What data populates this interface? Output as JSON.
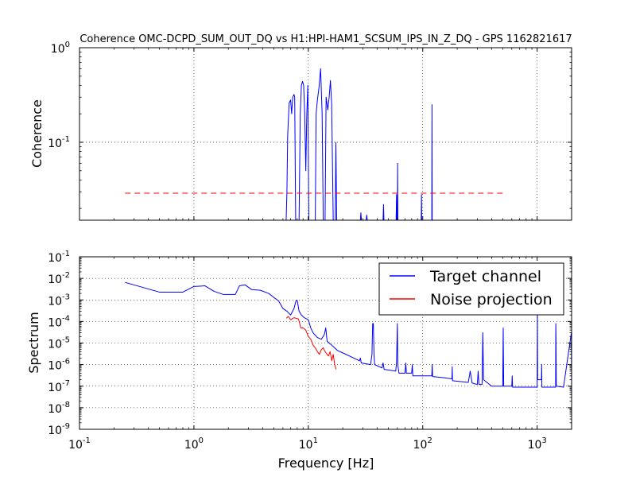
{
  "chart_data": [
    {
      "type": "line",
      "title": "Coherence OMC-DCPD_SUM_OUT_DQ vs H1:HPI-HAM1_SCSUM_IPS_IN_Z_DQ - GPS 1162821617",
      "xlabel": "",
      "ylabel": "Coherence",
      "xscale": "log",
      "yscale": "log",
      "xlim": [
        0.1,
        2000
      ],
      "ylim": [
        0.015,
        1
      ],
      "yticks": [
        {
          "base": "10",
          "exp": "0"
        },
        {
          "base": "10",
          "exp": "-1"
        }
      ],
      "grid": true,
      "series": [
        {
          "name": "",
          "color": "#0000ff",
          "style": "solid",
          "points": [
            [
              6.4,
              0.015
            ],
            [
              6.5,
              0.03
            ],
            [
              6.6,
              0.12
            ],
            [
              6.8,
              0.26
            ],
            [
              7.0,
              0.28
            ],
            [
              7.15,
              0.2
            ],
            [
              7.3,
              0.3
            ],
            [
              7.5,
              0.32
            ],
            [
              7.6,
              0.3
            ],
            [
              7.75,
              0.015
            ],
            [
              8.3,
              0.015
            ],
            [
              8.5,
              0.2
            ],
            [
              8.7,
              0.4
            ],
            [
              8.9,
              0.44
            ],
            [
              9.1,
              0.4
            ],
            [
              9.3,
              0.2
            ],
            [
              9.5,
              0.05
            ],
            [
              9.7,
              0.2
            ],
            [
              9.9,
              0.4
            ],
            [
              10.1,
              0.015
            ],
            [
              11.5,
              0.015
            ],
            [
              11.7,
              0.2
            ],
            [
              12.0,
              0.28
            ],
            [
              12.4,
              0.38
            ],
            [
              12.8,
              0.6
            ],
            [
              13.2,
              0.2
            ],
            [
              13.5,
              0.015
            ],
            [
              14.0,
              0.015
            ],
            [
              14.3,
              0.3
            ],
            [
              14.8,
              0.22
            ],
            [
              15.2,
              0.3
            ],
            [
              15.6,
              0.45
            ],
            [
              16.0,
              0.25
            ],
            [
              16.5,
              0.015
            ],
            [
              17.2,
              0.015
            ],
            [
              17.4,
              0.1
            ],
            [
              17.7,
              0.015
            ],
            [
              28.5,
              0.015
            ],
            [
              28.8,
              0.018
            ],
            [
              29.1,
              0.015
            ],
            [
              32.0,
              0.015
            ],
            [
              32.4,
              0.017
            ],
            [
              32.8,
              0.015
            ],
            [
              45.0,
              0.015
            ],
            [
              45.4,
              0.022
            ],
            [
              45.8,
              0.015
            ],
            [
              58.5,
              0.015
            ],
            [
              59.0,
              0.028
            ],
            [
              59.5,
              0.015
            ],
            [
              60.0,
              0.015
            ],
            [
              60.3,
              0.06
            ],
            [
              60.6,
              0.015
            ],
            [
              97.0,
              0.015
            ],
            [
              97.5,
              0.028
            ],
            [
              98.0,
              0.015
            ],
            [
              120.0,
              0.015
            ],
            [
              120.5,
              0.25
            ],
            [
              121.0,
              0.015
            ]
          ]
        },
        {
          "name": "",
          "color": "#ff0000",
          "style": "dashed",
          "points": [
            [
              0.25,
              0.029
            ],
            [
              512,
              0.029
            ]
          ]
        }
      ]
    },
    {
      "type": "line",
      "title": "",
      "xlabel": "Frequency [Hz]",
      "ylabel": "Spectrum",
      "xscale": "log",
      "yscale": "log",
      "xlim": [
        0.1,
        2000
      ],
      "ylim": [
        1e-09,
        0.1
      ],
      "xticks": [
        {
          "base": "10",
          "exp": "-1"
        },
        {
          "base": "10",
          "exp": "0"
        },
        {
          "base": "10",
          "exp": "1"
        },
        {
          "base": "10",
          "exp": "2"
        },
        {
          "base": "10",
          "exp": "3"
        }
      ],
      "yticks": [
        {
          "base": "10",
          "exp": "-1"
        },
        {
          "base": "10",
          "exp": "-2"
        },
        {
          "base": "10",
          "exp": "-3"
        },
        {
          "base": "10",
          "exp": "-4"
        },
        {
          "base": "10",
          "exp": "-5"
        },
        {
          "base": "10",
          "exp": "-6"
        },
        {
          "base": "10",
          "exp": "-7"
        },
        {
          "base": "10",
          "exp": "-8"
        },
        {
          "base": "10",
          "exp": "-9"
        }
      ],
      "grid": true,
      "legend_position": "top-right",
      "series": [
        {
          "name": "Target channel",
          "color": "#0000ff",
          "style": "solid",
          "points": [
            [
              0.25,
              0.0065
            ],
            [
              0.5,
              0.0023
            ],
            [
              0.8,
              0.0023
            ],
            [
              1.0,
              0.0042
            ],
            [
              1.25,
              0.0045
            ],
            [
              1.5,
              0.0025
            ],
            [
              1.8,
              0.0018
            ],
            [
              2.0,
              0.0018
            ],
            [
              2.3,
              0.0018
            ],
            [
              2.5,
              0.0045
            ],
            [
              2.8,
              0.005
            ],
            [
              3.2,
              0.003
            ],
            [
              3.8,
              0.0028
            ],
            [
              4.5,
              0.002
            ],
            [
              5.0,
              0.0013
            ],
            [
              5.5,
              0.0009
            ],
            [
              6.0,
              0.0004
            ],
            [
              6.5,
              0.0003
            ],
            [
              7.0,
              0.0002
            ],
            [
              7.5,
              0.0004
            ],
            [
              7.8,
              0.0009
            ],
            [
              8.0,
              0.00095
            ],
            [
              8.3,
              0.0003
            ],
            [
              8.7,
              0.0002
            ],
            [
              9.2,
              0.00015
            ],
            [
              10.0,
              0.00012
            ],
            [
              10.5,
              5e-05
            ],
            [
              11.0,
              3e-05
            ],
            [
              12.0,
              1.8e-05
            ],
            [
              13.0,
              1.5e-05
            ],
            [
              13.8,
              2.5e-05
            ],
            [
              14.2,
              5e-05
            ],
            [
              14.6,
              1.2e-05
            ],
            [
              16.0,
              8e-06
            ],
            [
              18.0,
              4.5e-06
            ],
            [
              20.0,
              3.5e-06
            ],
            [
              25.0,
              2e-06
            ],
            [
              28.0,
              1.5e-06
            ],
            [
              28.5,
              2e-06
            ],
            [
              29.0,
              1.2e-06
            ],
            [
              35.0,
              1e-06
            ],
            [
              36.0,
              3e-06
            ],
            [
              36.5,
              8e-05
            ],
            [
              37.0,
              8e-05
            ],
            [
              37.5,
              3e-06
            ],
            [
              38.0,
              1e-06
            ],
            [
              44.0,
              7e-07
            ],
            [
              45.0,
              1.2e-06
            ],
            [
              46.0,
              6e-07
            ],
            [
              58.0,
              5e-07
            ],
            [
              59.0,
              1.2e-06
            ],
            [
              60.0,
              8e-05
            ],
            [
              60.5,
              1e-06
            ],
            [
              62.0,
              4e-07
            ],
            [
              70.0,
              4e-07
            ],
            [
              71.0,
              1.2e-06
            ],
            [
              72.0,
              4e-07
            ],
            [
              80.0,
              4e-07
            ],
            [
              81.0,
              1e-06
            ],
            [
              82.0,
              3e-07
            ],
            [
              100.0,
              3e-07
            ],
            [
              120.0,
              3e-07
            ],
            [
              121.0,
              1e-06
            ],
            [
              122.0,
              2.8e-07
            ],
            [
              150.0,
              2.5e-07
            ],
            [
              180.0,
              2.2e-07
            ],
            [
              181.0,
              8e-07
            ],
            [
              182.0,
              1.8e-07
            ],
            [
              250.0,
              1.5e-07
            ],
            [
              260.0,
              5e-07
            ],
            [
              270.0,
              1.4e-07
            ],
            [
              300.0,
              1.2e-07
            ],
            [
              305.0,
              5e-07
            ],
            [
              310.0,
              1.2e-07
            ],
            [
              330.0,
              1.2e-07
            ],
            [
              335.0,
              3e-05
            ],
            [
              340.0,
              2e-07
            ],
            [
              400.0,
              1e-07
            ],
            [
              500.0,
              1e-07
            ],
            [
              505.0,
              5e-05
            ],
            [
              510.0,
              1e-07
            ],
            [
              600.0,
              1e-07
            ],
            [
              605.0,
              3e-07
            ],
            [
              610.0,
              9e-08
            ],
            [
              800.0,
              9e-08
            ],
            [
              1000.0,
              9e-08
            ],
            [
              1005.0,
              0.0003
            ],
            [
              1010.0,
              2e-07
            ],
            [
              1090.0,
              2e-07
            ],
            [
              1095.0,
              1e-06
            ],
            [
              1100.0,
              9e-08
            ],
            [
              1450.0,
              9e-08
            ],
            [
              1455.0,
              8e-05
            ],
            [
              1460.0,
              2e-05
            ],
            [
              1470.0,
              1e-07
            ],
            [
              1700.0,
              9e-08
            ],
            [
              1990.0,
              3e-05
            ],
            [
              2000.0,
              9e-08
            ]
          ]
        },
        {
          "name": "Noise projection",
          "color": "#ff0000",
          "style": "solid",
          "points": [
            [
              6.4,
              0.00014
            ],
            [
              6.7,
              0.00017
            ],
            [
              7.0,
              0.00012
            ],
            [
              7.5,
              0.00015
            ],
            [
              8.2,
              0.00013
            ],
            [
              8.6,
              5e-05
            ],
            [
              9.0,
              5e-05
            ],
            [
              9.5,
              4e-05
            ],
            [
              10.0,
              2e-05
            ],
            [
              10.5,
              1.5e-05
            ],
            [
              11.0,
              8e-06
            ],
            [
              11.5,
              6e-06
            ],
            [
              12.0,
              4e-06
            ],
            [
              12.5,
              3e-06
            ],
            [
              13.0,
              5e-06
            ],
            [
              13.5,
              6e-06
            ],
            [
              14.0,
              4e-06
            ],
            [
              15.0,
              2.5e-06
            ],
            [
              15.5,
              4e-06
            ],
            [
              16.0,
              1.5e-06
            ],
            [
              16.5,
              3e-06
            ],
            [
              17.0,
              1e-06
            ],
            [
              17.5,
              6e-07
            ]
          ]
        }
      ]
    }
  ]
}
